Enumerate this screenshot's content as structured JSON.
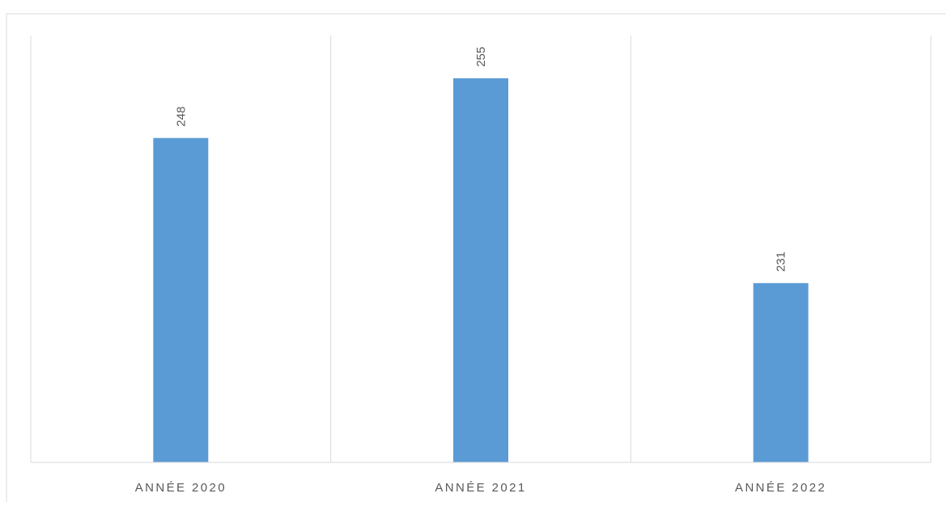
{
  "chart_data": {
    "type": "bar",
    "categories": [
      "ANNÉE 2020",
      "ANNÉE 2021",
      "ANNÉE 2022"
    ],
    "values": [
      248,
      255,
      231
    ],
    "data_labels": [
      "248",
      "255",
      "231"
    ],
    "title": "",
    "xlabel": "",
    "ylabel": "",
    "ylim": [
      210,
      260
    ],
    "grid": "vertical category separators",
    "legend": "none",
    "colors": {
      "bar": "#5B9BD5",
      "axis": "#D9D9D9",
      "label_text": "#595959",
      "frame": "#D9D9D9"
    }
  }
}
